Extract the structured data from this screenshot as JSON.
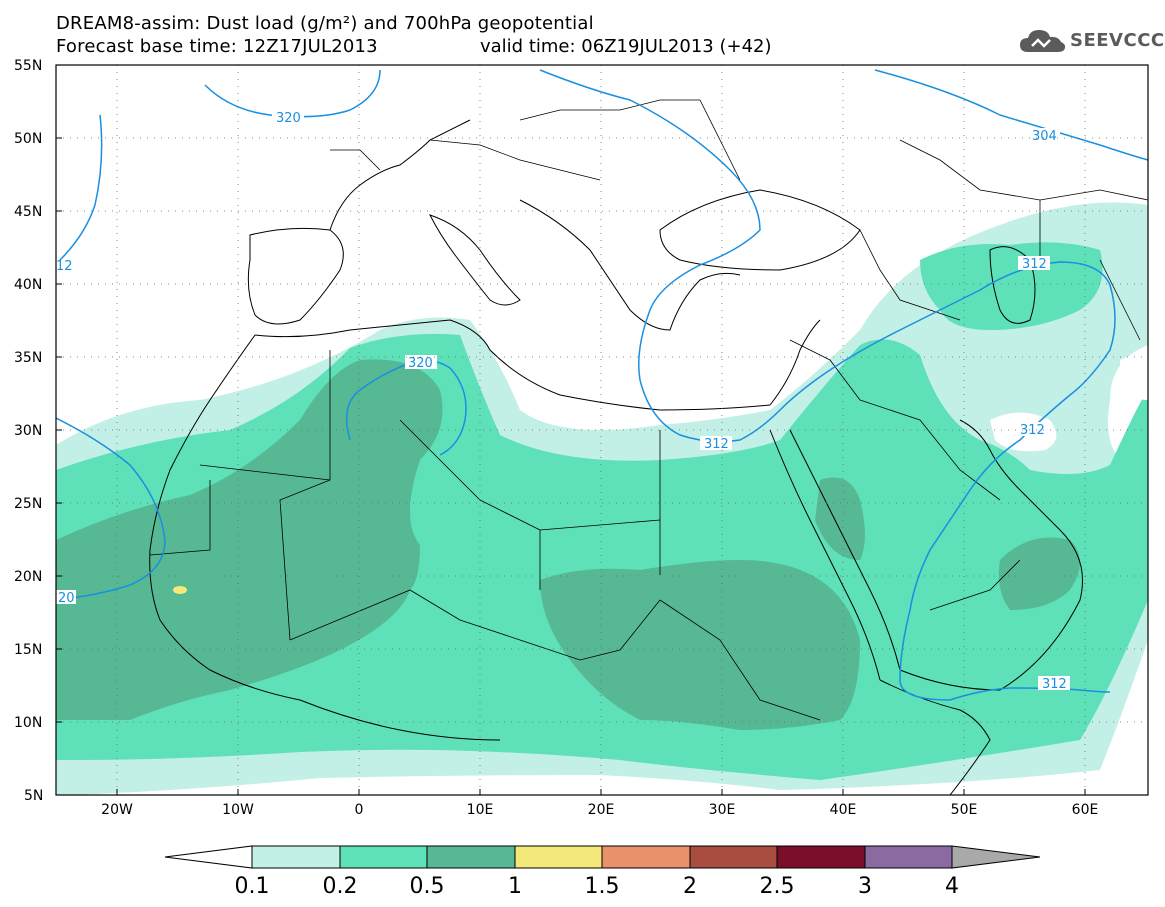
{
  "header": {
    "line1": "DREAM8-assim: Dust load (g/m²) and 700hPa geopotential",
    "line2_left": "Forecast base time: 12Z17JUL2013",
    "line2_right": "valid time: 06Z19JUL2013 (+42)"
  },
  "logo": {
    "text": "SEEVCCC",
    "icon": "cloud-icon"
  },
  "map": {
    "lat_labels": [
      "55N",
      "50N",
      "45N",
      "40N",
      "35N",
      "30N",
      "25N",
      "20N",
      "15N",
      "10N",
      "5N"
    ],
    "lon_labels": [
      "20W",
      "10W",
      "0",
      "10E",
      "20E",
      "30E",
      "40E",
      "50E",
      "60E"
    ],
    "contour_labels": [
      "320",
      "304",
      "12",
      "320",
      "312",
      "312",
      "312",
      "20",
      "312"
    ],
    "colors": {
      "level_0_1": "#c2efe6",
      "level_0_2": "#5ee0b9",
      "level_0_5": "#56b994",
      "level_1": "#f2e97a",
      "contour": "#1a8fe0",
      "coast": "#000000"
    }
  },
  "colorbar": {
    "labels": [
      "0.1",
      "0.2",
      "0.5",
      "1",
      "1.5",
      "2",
      "2.5",
      "3",
      "4"
    ],
    "colors": [
      "#ffffff",
      "#c2efe6",
      "#5ee0b9",
      "#56b994",
      "#f2e97a",
      "#e8916a",
      "#a84d40",
      "#7a0e2a",
      "#8a6aa0",
      "#a9a9a9"
    ]
  }
}
